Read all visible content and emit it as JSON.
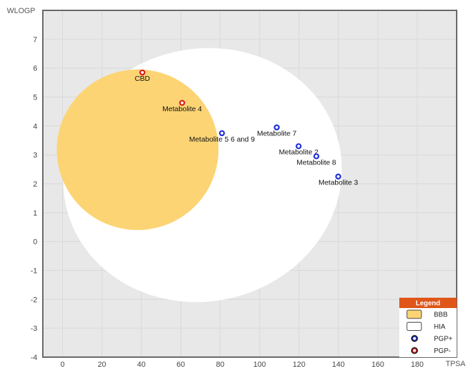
{
  "chart_data": {
    "type": "scatter",
    "xlabel": "TPSA",
    "ylabel": "WLOGP",
    "xlim": [
      -10,
      200
    ],
    "ylim": [
      -4,
      8
    ],
    "xticks": [
      "0",
      "20",
      "40",
      "60",
      "80",
      "100",
      "120",
      "140",
      "160",
      "180"
    ],
    "yticks": [
      "-4",
      "-3",
      "-2",
      "-1",
      "0",
      "1",
      "2",
      "3",
      "4",
      "5",
      "6",
      "7"
    ],
    "grid": true,
    "regions": [
      {
        "name": "HIA",
        "shape": "ellipse",
        "cx": 71.05,
        "cy": 2.3,
        "rx": 142.081,
        "ry": 8.74,
        "angle_deg": -13.2
      },
      {
        "name": "BBB",
        "shape": "ellipse",
        "cx": 38.117,
        "cy": 3.177,
        "rx": 82.061,
        "ry": 5.557,
        "angle_deg": -6.74
      }
    ],
    "points": [
      {
        "label": "CBD",
        "x": 40.5,
        "y": 5.85,
        "class": "PGP-"
      },
      {
        "label": "Metabolite 4",
        "x": 60.7,
        "y": 4.8,
        "class": "PGP-"
      },
      {
        "label": "Metabolite 5 6 and 9",
        "x": 80.9,
        "y": 3.75,
        "class": "PGP+"
      },
      {
        "label": "Metabolite 7",
        "x": 108.7,
        "y": 3.95,
        "class": "PGP+"
      },
      {
        "label": "Metabolite 2",
        "x": 119.8,
        "y": 3.3,
        "class": "PGP+"
      },
      {
        "label": "Metabolite 8",
        "x": 128.8,
        "y": 2.95,
        "class": "PGP+"
      },
      {
        "label": "Metabolite 3",
        "x": 139.9,
        "y": 2.25,
        "class": "PGP+"
      }
    ],
    "legend": {
      "title": "Legend",
      "placement": "bottom-right",
      "items": [
        {
          "label": "BBB",
          "kind": "yolk"
        },
        {
          "label": "HIA",
          "kind": "white"
        },
        {
          "label": "PGP+",
          "kind": "pgp-plus"
        },
        {
          "label": "PGP-",
          "kind": "pgp-minus"
        }
      ]
    },
    "colors": {
      "plot_bg": "#e8e8e8",
      "grid": "#d9d9d9",
      "yolk": "#fcd474",
      "white": "#ffffff",
      "pgp_plus": "#1f2fd6",
      "pgp_minus": "#e0191b",
      "legend_header": "#e0561a"
    }
  }
}
